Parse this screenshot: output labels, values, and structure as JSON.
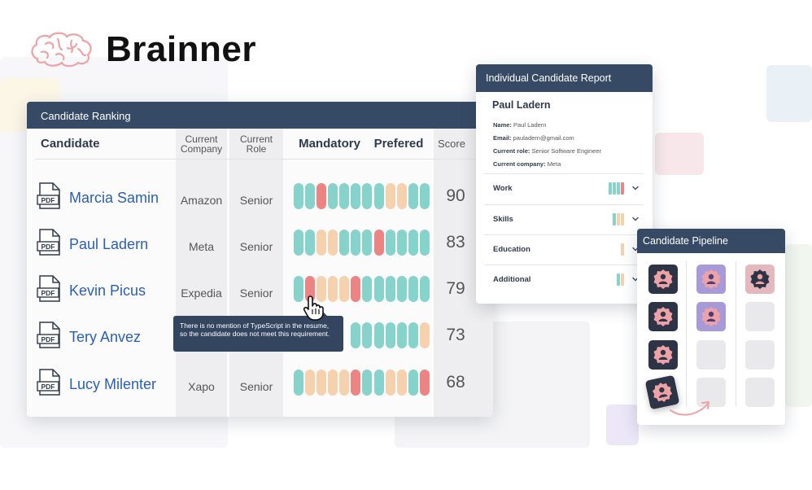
{
  "brand": {
    "name": "Brainner",
    "logo_icon": "brain-icon"
  },
  "ranking": {
    "title": "Candidate Ranking",
    "headers": {
      "candidate": "Candidate",
      "company_line1": "Current",
      "company_line2": "Company",
      "role_line1": "Current",
      "role_line2": "Role",
      "mandatory": "Mandatory",
      "preferred": "Prefered",
      "score": "Score"
    },
    "rows": [
      {
        "name": "Marcia Samin",
        "company": "Amazon",
        "role": "Senior",
        "score": "90",
        "file_icon": "pdf-file-icon",
        "file_label": "PDF",
        "mandatory": [
          "teal",
          "teal",
          "red",
          "teal",
          "teal",
          "teal",
          "teal"
        ],
        "preferred": [
          "teal",
          "peach",
          "peach",
          "teal",
          "teal"
        ]
      },
      {
        "name": "Paul Ladern",
        "company": "Meta",
        "role": "Senior",
        "score": "83",
        "file_icon": "pdf-file-icon",
        "file_label": "PDF",
        "mandatory": [
          "teal",
          "teal",
          "peach",
          "peach",
          "teal",
          "teal",
          "teal"
        ],
        "preferred": [
          "red",
          "teal",
          "teal",
          "teal",
          "teal"
        ]
      },
      {
        "name": "Kevin Picus",
        "company": "Expedia",
        "role": "Senior",
        "score": "79",
        "file_icon": "pdf-file-icon",
        "file_label": "PDF",
        "mandatory": [
          "teal",
          "red",
          "peach",
          "peach",
          "peach",
          "red",
          "teal"
        ],
        "preferred": [
          "teal",
          "teal",
          "teal",
          "teal",
          "teal"
        ]
      },
      {
        "name": "Tery Anvez",
        "company": "",
        "role": "",
        "score": "73",
        "file_icon": "pdf-file-icon",
        "file_label": "PDF",
        "mandatory": [
          "",
          "",
          "",
          "",
          "",
          "teal",
          "teal"
        ],
        "preferred": [
          "teal",
          "teal",
          "teal",
          "teal",
          "peach"
        ]
      },
      {
        "name": "Lucy Milenter",
        "company": "Xapo",
        "role": "Senior",
        "score": "68",
        "file_icon": "pdf-file-icon",
        "file_label": "PDF",
        "mandatory": [
          "teal",
          "peach",
          "peach",
          "peach",
          "peach",
          "red",
          "teal"
        ],
        "preferred": [
          "teal",
          "peach",
          "peach",
          "teal",
          "red"
        ]
      }
    ],
    "tooltip": "There is no mention of TypeScript in the resume, so the candidate does not meet this requirement."
  },
  "report": {
    "title": "Individual Candidate Report",
    "candidate_name": "Paul Ladern",
    "fields": [
      {
        "label": "Name:",
        "value": "Paul Ladern"
      },
      {
        "label": "Email:",
        "value": "pauladern@gmail.com"
      },
      {
        "label": "Current role:",
        "value": "Senior Software Engineer"
      },
      {
        "label": "Current company:",
        "value": "Meta"
      }
    ],
    "sections": [
      {
        "label": "Work",
        "bars": [
          "teal",
          "teal",
          "teal",
          "red"
        ]
      },
      {
        "label": "Skills",
        "bars": [
          "teal",
          "peach",
          "peach"
        ]
      },
      {
        "label": "Education",
        "bars": [
          "peach"
        ]
      },
      {
        "label": "Additional",
        "bars": [
          "teal",
          "peach"
        ]
      }
    ]
  },
  "pipeline": {
    "title": "Candidate Pipeline"
  },
  "colors": {
    "teal": "#86d3cc",
    "red": "#ee8383",
    "peach": "#f6d1ad",
    "header": "#364a66",
    "link": "#2a5fb6"
  }
}
